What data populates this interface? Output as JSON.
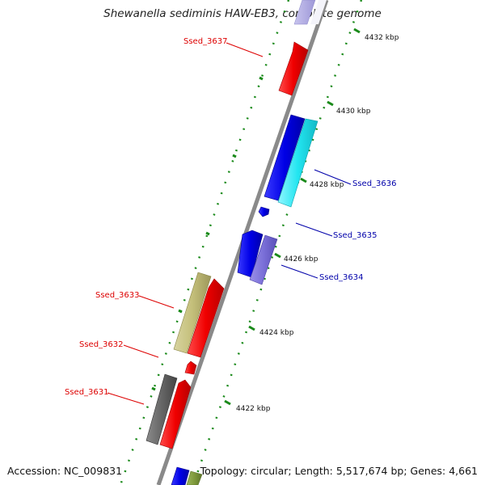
{
  "title": "Shewanella sediminis HAW-EB3, complete genome",
  "footer": {
    "accession": "Accession: NC_009831",
    "summary": "Topology: circular; Length: 5,517,674 bp; Genes: 4,661"
  },
  "scale": {
    "ticks": [
      {
        "label": "4422 kbp"
      },
      {
        "label": "4424 kbp"
      },
      {
        "label": "4426 kbp"
      },
      {
        "label": "4428 kbp"
      },
      {
        "label": "4430 kbp"
      },
      {
        "label": "4432 kbp"
      }
    ]
  },
  "genes": [
    {
      "name": "Ssed_3631",
      "color": "#dd0000"
    },
    {
      "name": "Ssed_3632",
      "color": "#dd0000"
    },
    {
      "name": "Ssed_3633",
      "color": "#dd0000"
    },
    {
      "name": "Ssed_3634",
      "color": "#0000aa"
    },
    {
      "name": "Ssed_3635",
      "color": "#0000aa"
    },
    {
      "name": "Ssed_3636",
      "color": "#0000aa"
    },
    {
      "name": "Ssed_3637",
      "color": "#dd0000"
    }
  ]
}
